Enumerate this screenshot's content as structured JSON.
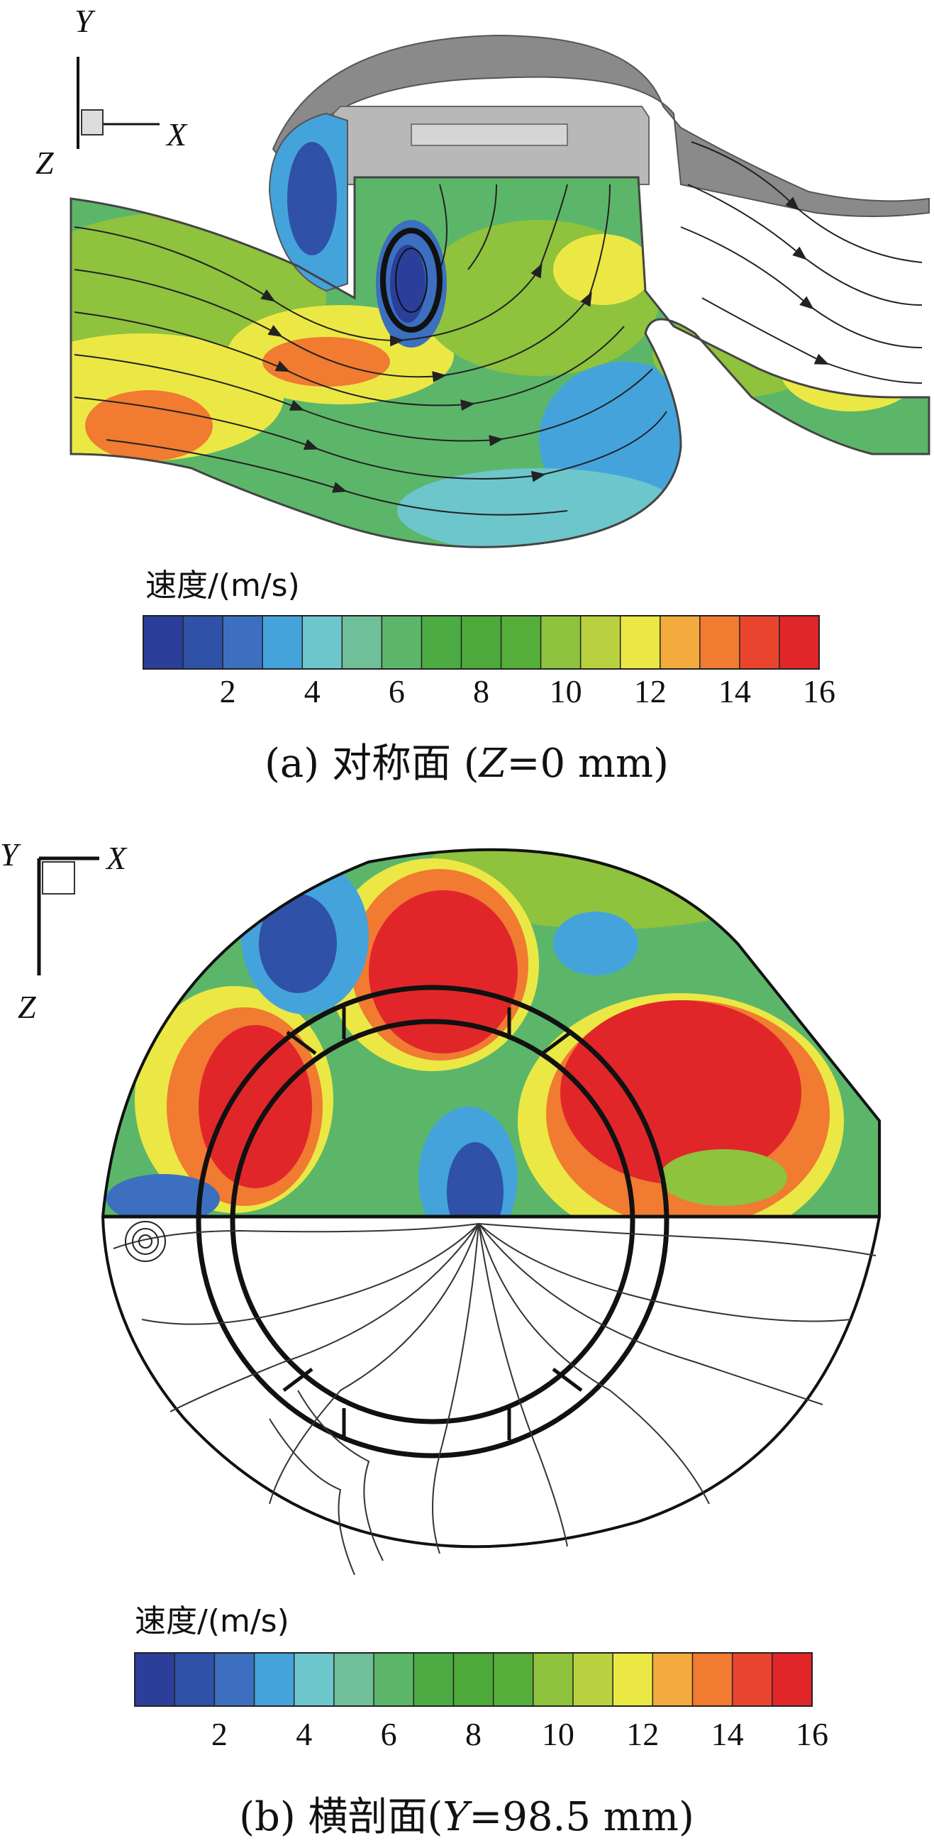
{
  "panel_a": {
    "axes": {
      "y": "Y",
      "x": "X",
      "z": "Z"
    },
    "legend": {
      "title": "速度/(m/s)",
      "min": 0,
      "max": 16,
      "ticks": [
        "2",
        "4",
        "6",
        "8",
        "10",
        "12",
        "14",
        "16"
      ]
    },
    "caption": {
      "prefix": "(a) 对称面 (",
      "var": "Z",
      "suffix": "=0 mm)"
    }
  },
  "panel_b": {
    "axes": {
      "y": "Y",
      "x": "X",
      "z": "Z"
    },
    "legend": {
      "title": "速度/(m/s)",
      "min": 0,
      "max": 16,
      "ticks": [
        "2",
        "4",
        "6",
        "8",
        "10",
        "12",
        "14",
        "16"
      ]
    },
    "caption": {
      "prefix": "(b) 横剖面(",
      "var": "Y",
      "suffix": "=98.5 mm)"
    }
  },
  "colormap": [
    "#2b3f9a",
    "#2f51a8",
    "#3c6fbf",
    "#45a3dc",
    "#6cc6cc",
    "#6fbf98",
    "#5cb66a",
    "#4cab43",
    "#4ea93b",
    "#55ad3a",
    "#8fc23d",
    "#b9d13f",
    "#ebe845",
    "#f2ab3c",
    "#f07b31",
    "#e9452e",
    "#e1262a"
  ]
}
